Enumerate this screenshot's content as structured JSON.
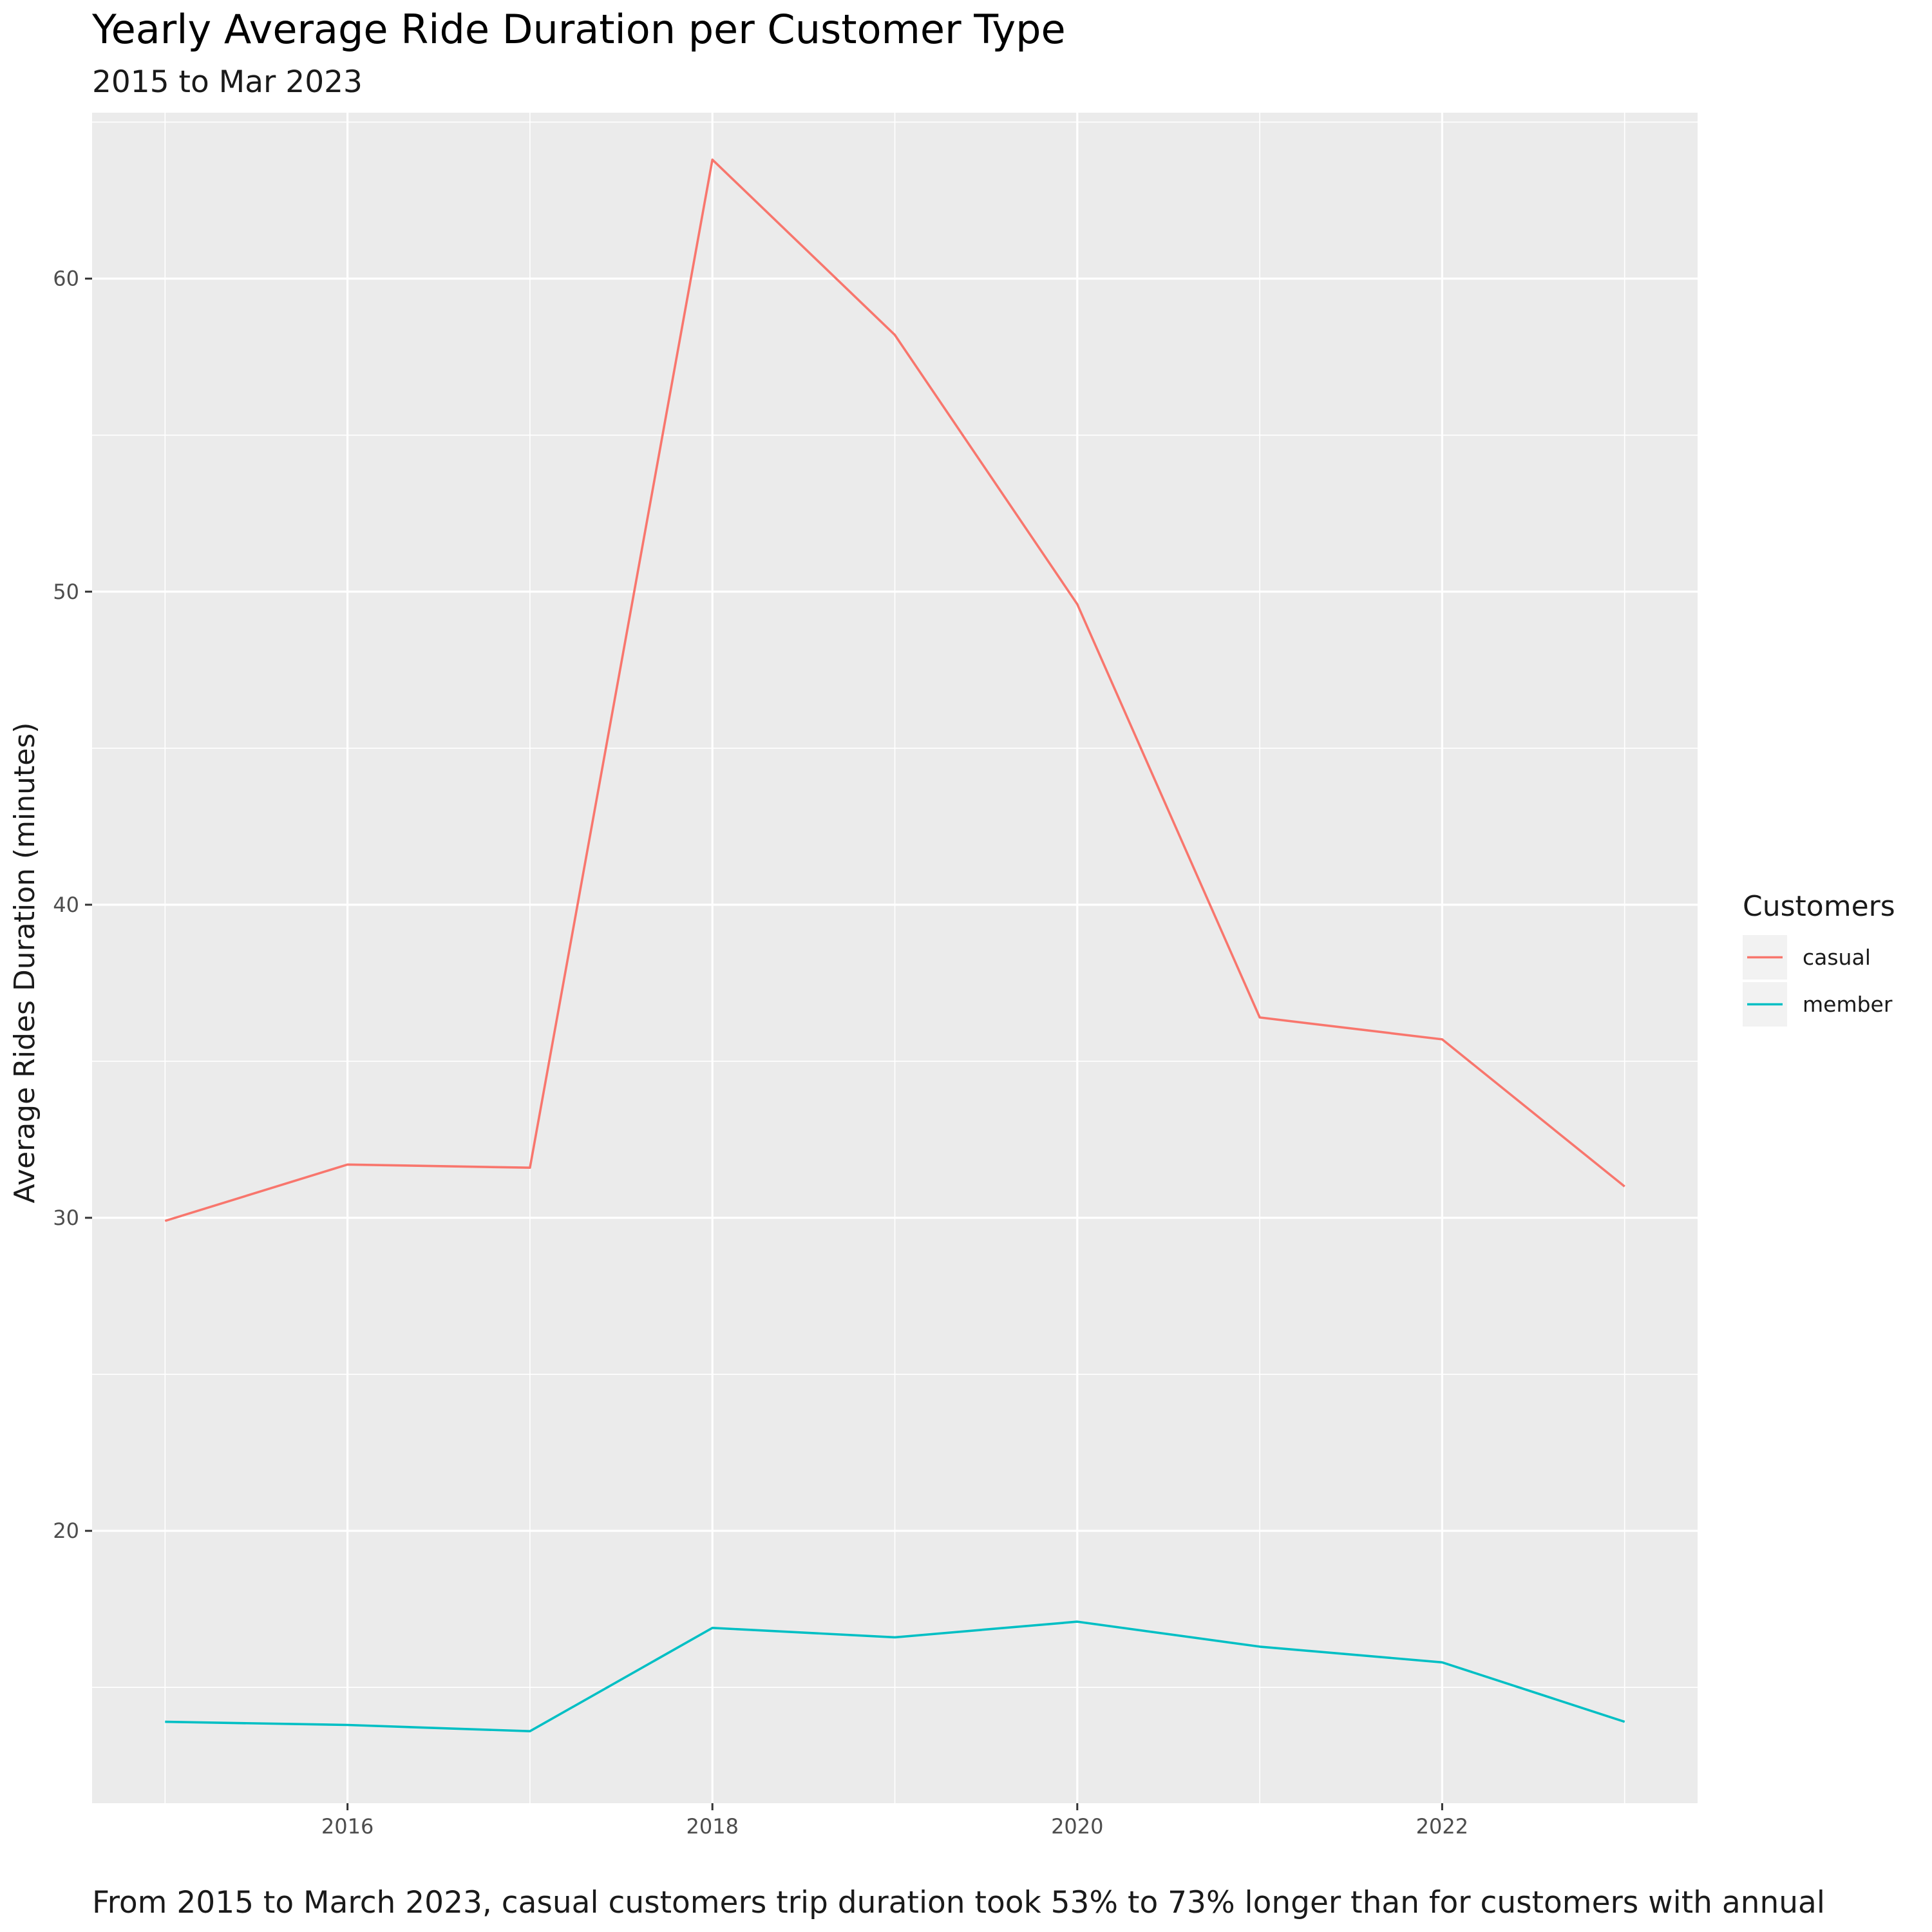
{
  "chart_data": {
    "type": "line",
    "title": "Yearly Average Ride Duration per Customer Type",
    "subtitle": "2015 to Mar 2023",
    "caption": "From 2015 to March 2023, casual customers trip duration took 53% to 73% longer than for customers with annual",
    "xlabel": "",
    "ylabel": "Average Rides Duration (minutes)",
    "x": [
      2015,
      2016,
      2017,
      2018,
      2019,
      2020,
      2021,
      2022,
      2023
    ],
    "xlim": [
      2014.6,
      2023.4
    ],
    "ylim": [
      11.3,
      65.3
    ],
    "x_ticks": [
      2016,
      2018,
      2020,
      2022
    ],
    "y_ticks": [
      20,
      30,
      40,
      50,
      60
    ],
    "grid": true,
    "legend": {
      "title": "Customers",
      "position": "right"
    },
    "series": [
      {
        "name": "casual",
        "color": "#F8766D",
        "values": [
          29.9,
          31.7,
          31.6,
          63.8,
          58.2,
          49.6,
          36.4,
          35.7,
          31.0
        ]
      },
      {
        "name": "member",
        "color": "#00BFC4",
        "values": [
          13.9,
          13.8,
          13.6,
          16.9,
          16.6,
          17.1,
          16.3,
          15.8,
          13.9
        ]
      }
    ]
  }
}
